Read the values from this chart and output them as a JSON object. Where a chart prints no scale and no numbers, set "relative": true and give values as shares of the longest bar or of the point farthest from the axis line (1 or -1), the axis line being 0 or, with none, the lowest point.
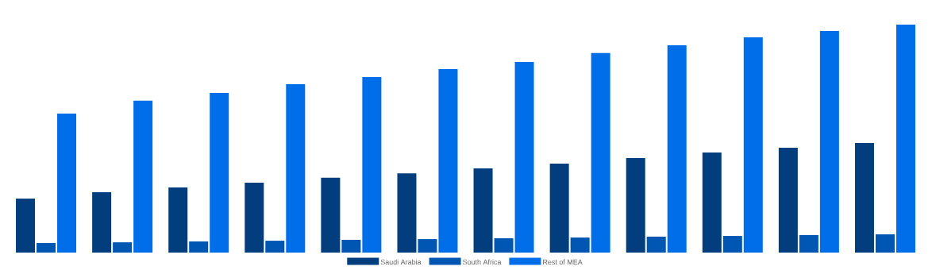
{
  "chart_data": {
    "type": "bar",
    "relative": true,
    "legend": "bottom",
    "categories": [
      null,
      null,
      null,
      null,
      null,
      null,
      null,
      null,
      null,
      null,
      null,
      null
    ],
    "series": [
      {
        "name": "Saudi Arabia",
        "color": "#023e7d",
        "values": [
          0.237,
          0.265,
          0.286,
          0.307,
          0.328,
          0.348,
          0.369,
          0.39,
          0.415,
          0.439,
          0.46,
          0.481
        ]
      },
      {
        "name": "South Africa",
        "color": "#0056b3",
        "values": [
          0.042,
          0.045,
          0.049,
          0.052,
          0.056,
          0.059,
          0.063,
          0.066,
          0.07,
          0.073,
          0.077,
          0.08
        ]
      },
      {
        "name": "Rest of MEA",
        "color": "#006ee8",
        "values": [
          0.61,
          0.666,
          0.7,
          0.739,
          0.77,
          0.805,
          0.836,
          0.875,
          0.909,
          0.944,
          0.972,
          1
        ]
      }
    ]
  }
}
